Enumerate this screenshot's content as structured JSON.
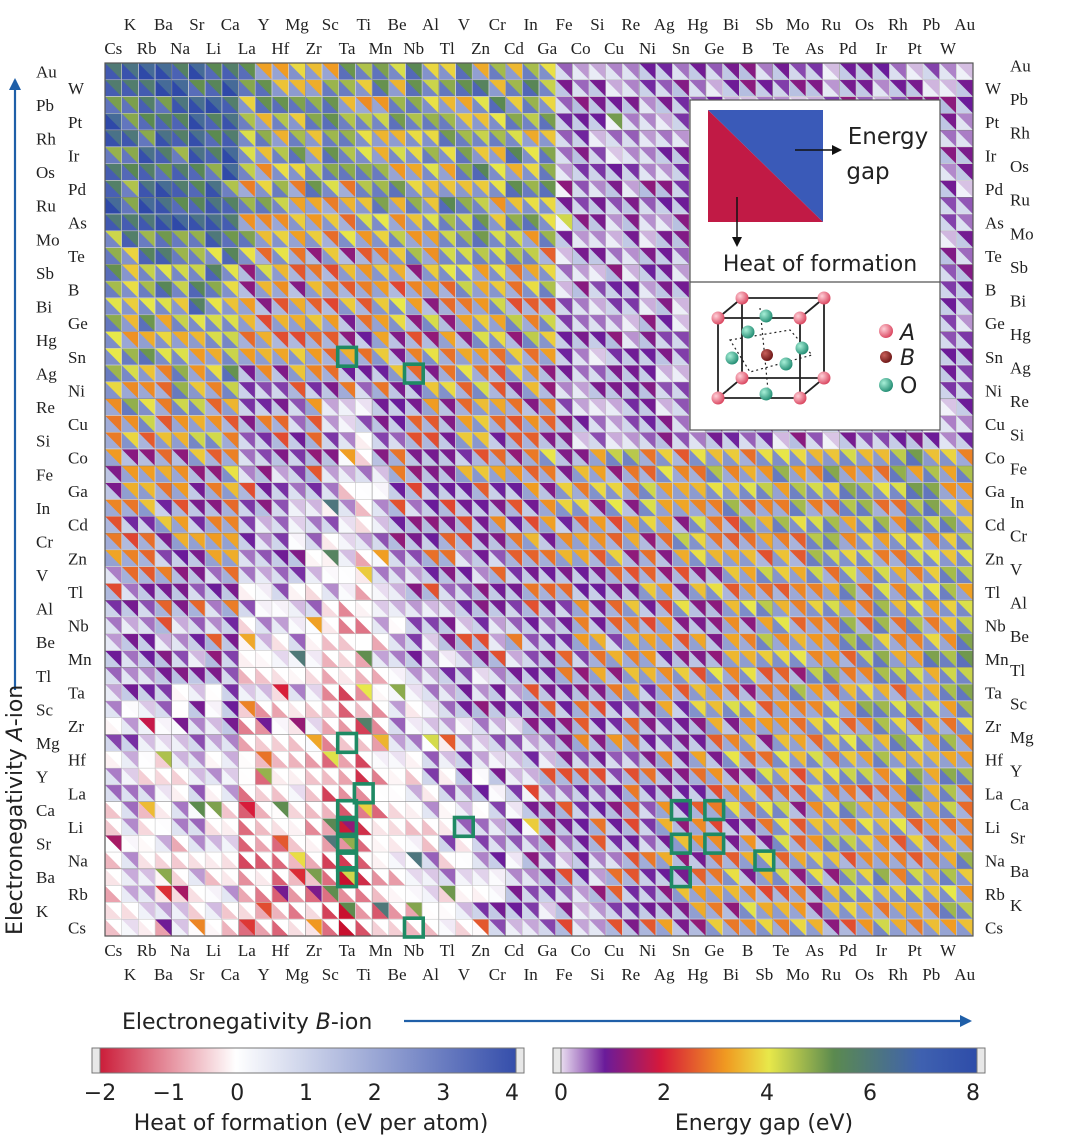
{
  "chart_data": {
    "type": "heatmap",
    "description_cell": "Each cell split diagonally: lower-left triangle = heat of formation, upper-right triangle = energy gap",
    "x_axis": {
      "label_prefix": "Electronegativity ",
      "label_italic": "B",
      "label_suffix": "-ion",
      "elements": [
        "Cs",
        "K",
        "Rb",
        "Ba",
        "Na",
        "Sr",
        "Li",
        "Ca",
        "La",
        "Y",
        "Hf",
        "Mg",
        "Zr",
        "Sc",
        "Ta",
        "Ti",
        "Mn",
        "Be",
        "Nb",
        "Al",
        "Tl",
        "V",
        "Zn",
        "Cr",
        "Cd",
        "In",
        "Ga",
        "Fe",
        "Co",
        "Si",
        "Cu",
        "Re",
        "Ni",
        "Ag",
        "Sn",
        "Hg",
        "Ge",
        "Bi",
        "B",
        "Sb",
        "Te",
        "Mo",
        "As",
        "Ru",
        "Pd",
        "Os",
        "Ir",
        "Rh",
        "Pt",
        "Pb",
        "W",
        "Au"
      ]
    },
    "y_axis": {
      "label_prefix": "Electronegativity ",
      "label_italic": "A",
      "label_suffix": "-ion",
      "elements": [
        "Au",
        "W",
        "Pb",
        "Pt",
        "Rh",
        "Ir",
        "Os",
        "Pd",
        "Ru",
        "As",
        "Mo",
        "Te",
        "Sb",
        "B",
        "Bi",
        "Ge",
        "Hg",
        "Sn",
        "Ag",
        "Ni",
        "Re",
        "Cu",
        "Si",
        "Co",
        "Fe",
        "Ga",
        "In",
        "Cd",
        "Cr",
        "Zn",
        "V",
        "Tl",
        "Al",
        "Nb",
        "Be",
        "Mn",
        "Tl",
        "Ta",
        "Sc",
        "Zr",
        "Mg",
        "Hf",
        "Y",
        "La",
        "Ca",
        "Li",
        "Sr",
        "Na",
        "Ba",
        "Rb",
        "K",
        "Cs"
      ]
    },
    "heat_colorbar": {
      "label": "Heat of formation (eV per atom)",
      "range": [
        -2,
        4
      ],
      "ticks": [
        "−2",
        "−1",
        "0",
        "1",
        "2",
        "3",
        "4"
      ],
      "colors": [
        "#c8102e",
        "#ffffff",
        "#2f49a8"
      ]
    },
    "gap_colorbar": {
      "label": "Energy gap (eV)",
      "range": [
        0,
        8
      ],
      "ticks": [
        "0",
        "2",
        "4",
        "6",
        "8"
      ],
      "colors": [
        "#ffffff",
        "#6a1b9a",
        "#d7193a",
        "#f09a21",
        "#e8e84a",
        "#5b8a4f",
        "#3f61b0",
        "#2c4aa8"
      ]
    },
    "legend_cell": {
      "gap_label": [
        "Energy",
        "gap"
      ],
      "heat_label": "Heat of formation",
      "heat_color": "#c11a45",
      "gap_color": "#3a5ab8"
    },
    "legend_structure": {
      "items": [
        {
          "label": "A",
          "color": "#d9425c"
        },
        {
          "label": "B",
          "color": "#7a1a1a"
        },
        {
          "label": "O",
          "color": "#1f8a70"
        }
      ]
    },
    "highlighted_cells": [
      {
        "B": "Ta",
        "A": "Sn"
      },
      {
        "B": "Nb",
        "A": "Ag"
      },
      {
        "B": "Ta",
        "A": "Mg"
      },
      {
        "B": "Ti",
        "A": "La"
      },
      {
        "B": "Ta",
        "A": "Ca"
      },
      {
        "B": "Ta",
        "A": "Li"
      },
      {
        "B": "Ta",
        "A": "Sr"
      },
      {
        "B": "Ta",
        "A": "Na"
      },
      {
        "B": "Ta",
        "A": "Ba"
      },
      {
        "B": "V",
        "A": "Li"
      },
      {
        "B": "Sn",
        "A": "Ca"
      },
      {
        "B": "Ge",
        "A": "Ca"
      },
      {
        "B": "Sn",
        "A": "Sr"
      },
      {
        "B": "Ge",
        "A": "Sr"
      },
      {
        "B": "Sb",
        "A": "Na"
      },
      {
        "B": "Sn",
        "A": "Ba"
      },
      {
        "B": "Nb",
        "A": "Cs"
      }
    ],
    "highlight_color": "#1f8a64"
  }
}
